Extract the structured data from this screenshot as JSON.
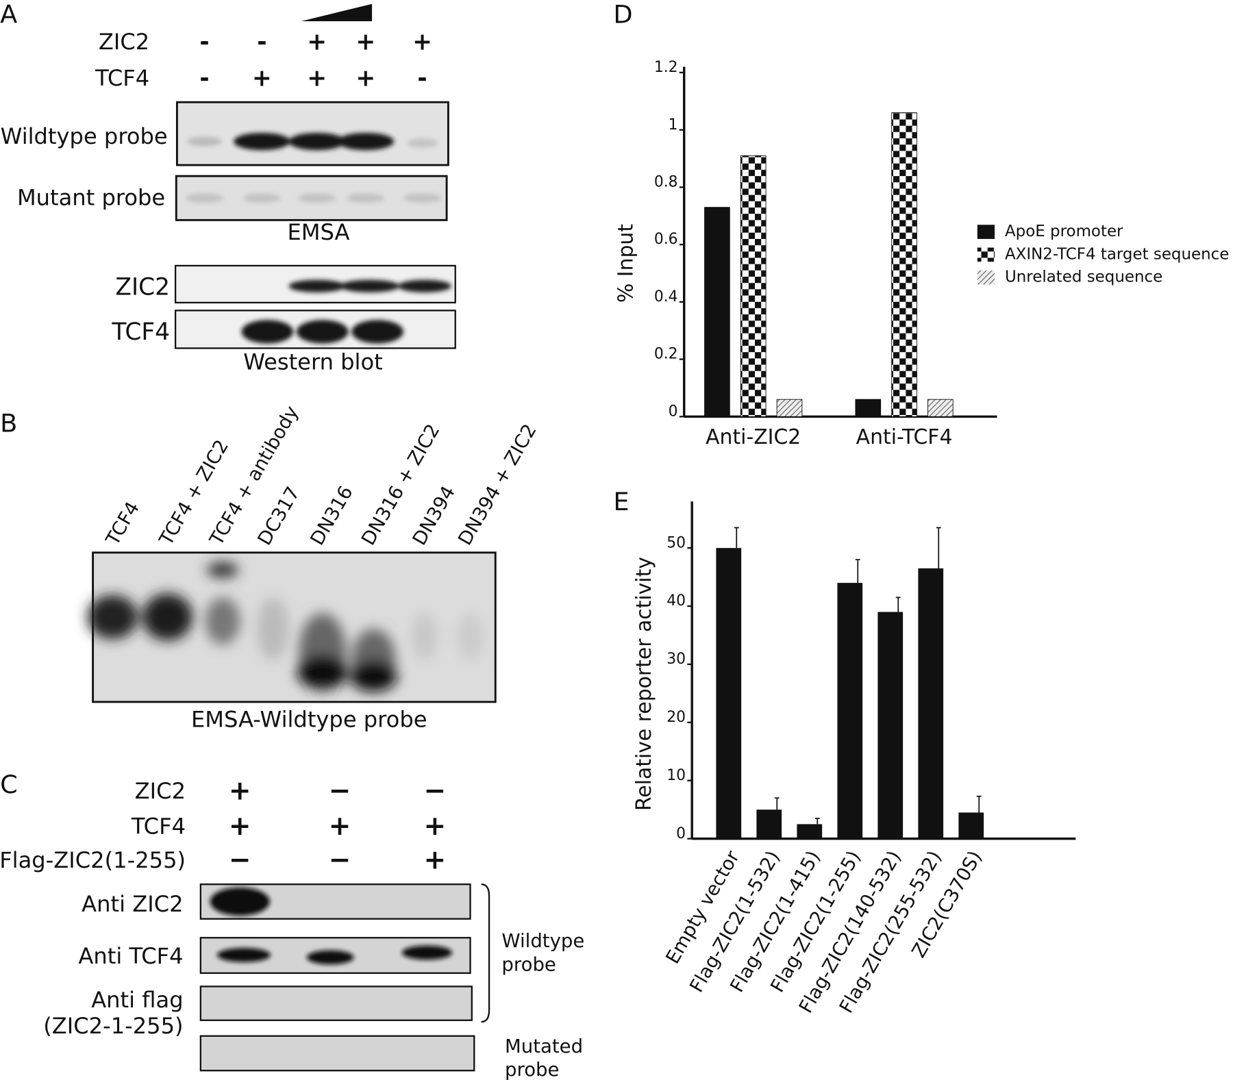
{
  "panel_a": {
    "label": "A",
    "rows": [
      {
        "name": "ZIC2",
        "signs": [
          "-",
          "-",
          "+",
          "+",
          "+"
        ]
      },
      {
        "name": "TCF4",
        "signs": [
          "-",
          "+",
          "+",
          "+",
          "-"
        ]
      }
    ],
    "blots": [
      "Wildtype probe",
      "Mutant probe"
    ],
    "emsa_caption": "EMSA",
    "western_rows": [
      "ZIC2",
      "TCF4"
    ],
    "western_caption": "Western blot"
  },
  "panel_b": {
    "label": "B",
    "lanes": [
      "TCF4",
      "TCF4 + ZIC2",
      "TCF4 + antibody",
      "DC317",
      "DN316",
      "DN316 + ZIC2",
      "DN394",
      "DN394 + ZIC2"
    ],
    "caption": "EMSA-Wildtype probe"
  },
  "panel_c": {
    "label": "C",
    "rows": [
      {
        "name": "ZIC2",
        "signs": [
          "+",
          "−",
          "−"
        ]
      },
      {
        "name": "TCF4",
        "signs": [
          "+",
          "+",
          "+"
        ]
      },
      {
        "name": "Flag-ZIC2(1-255)",
        "signs": [
          "−",
          "−",
          "+"
        ]
      }
    ],
    "blots": [
      "Anti ZIC2",
      "Anti TCF4",
      "Anti flag",
      "(ZIC2-1-255)"
    ],
    "bracket_labels": [
      "Wildtype",
      "probe"
    ],
    "mutated_labels": [
      "Mutated",
      "probe"
    ]
  },
  "chart_data": [
    {
      "type": "bar",
      "panel": "D",
      "y_label": "% Input",
      "categories": [
        "Anti-ZIC2",
        "Anti-TCF4"
      ],
      "series": [
        {
          "name": "ApoE promoter",
          "color": "#111111",
          "pattern": "solid",
          "values": [
            0.73,
            0.06
          ]
        },
        {
          "name": "AXIN2-TCF4 target sequence",
          "color": "#111111",
          "pattern": "checker",
          "values": [
            0.91,
            1.06
          ]
        },
        {
          "name": "Unrelated sequence",
          "color": "#555555",
          "pattern": "hatch",
          "values": [
            0.06,
            0.06
          ]
        }
      ],
      "ylim": [
        0,
        1.22
      ],
      "yticks": [
        0,
        0.2,
        0.4,
        0.6,
        0.8,
        1,
        1.2
      ],
      "legend": "right"
    },
    {
      "type": "bar",
      "panel": "E",
      "y_label": "Relative reporter activity",
      "categories": [
        "Empty vector",
        "Flag-ZIC2(1-532)",
        "Flag-ZIC2(1-415)",
        "Flag-ZIC2(1-255)",
        "Flag-ZIC2(140-532)",
        "Flag-ZIC2(255-532)",
        "ZIC2(C370S)"
      ],
      "values": [
        50,
        5,
        2.5,
        44,
        39,
        46.5,
        4.5
      ],
      "errors": [
        3.5,
        2,
        1,
        4,
        2.5,
        7,
        2.8
      ],
      "color": "#111111",
      "ylim": [
        0,
        58
      ],
      "yticks": [
        0,
        10,
        20,
        30,
        40,
        50
      ]
    }
  ]
}
